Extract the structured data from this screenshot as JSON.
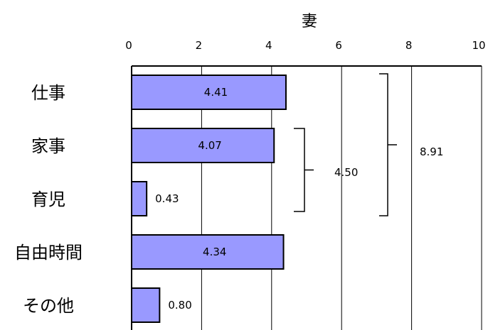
{
  "chart_data": {
    "type": "bar",
    "orientation": "horizontal",
    "title": "妻",
    "categories": [
      "仕事",
      "家事",
      "育児",
      "自由時間",
      "その他"
    ],
    "values": [
      4.41,
      4.07,
      0.43,
      4.34,
      0.8
    ],
    "value_labels": [
      "4.41",
      "4.07",
      "0.43",
      "4.34",
      "0.80"
    ],
    "xlim": [
      0,
      10
    ],
    "x_ticks": [
      "0",
      "2",
      "4",
      "6",
      "8",
      "10"
    ],
    "grid": true,
    "bar_color": "#9999ff",
    "bar_edge_color": "#000000",
    "brackets": [
      {
        "label": "4.50",
        "from_category": "家事",
        "to_category": "育児",
        "value": 4.5
      },
      {
        "label": "8.91",
        "from_category": "仕事",
        "to_category": "育児",
        "value": 8.91
      }
    ]
  }
}
